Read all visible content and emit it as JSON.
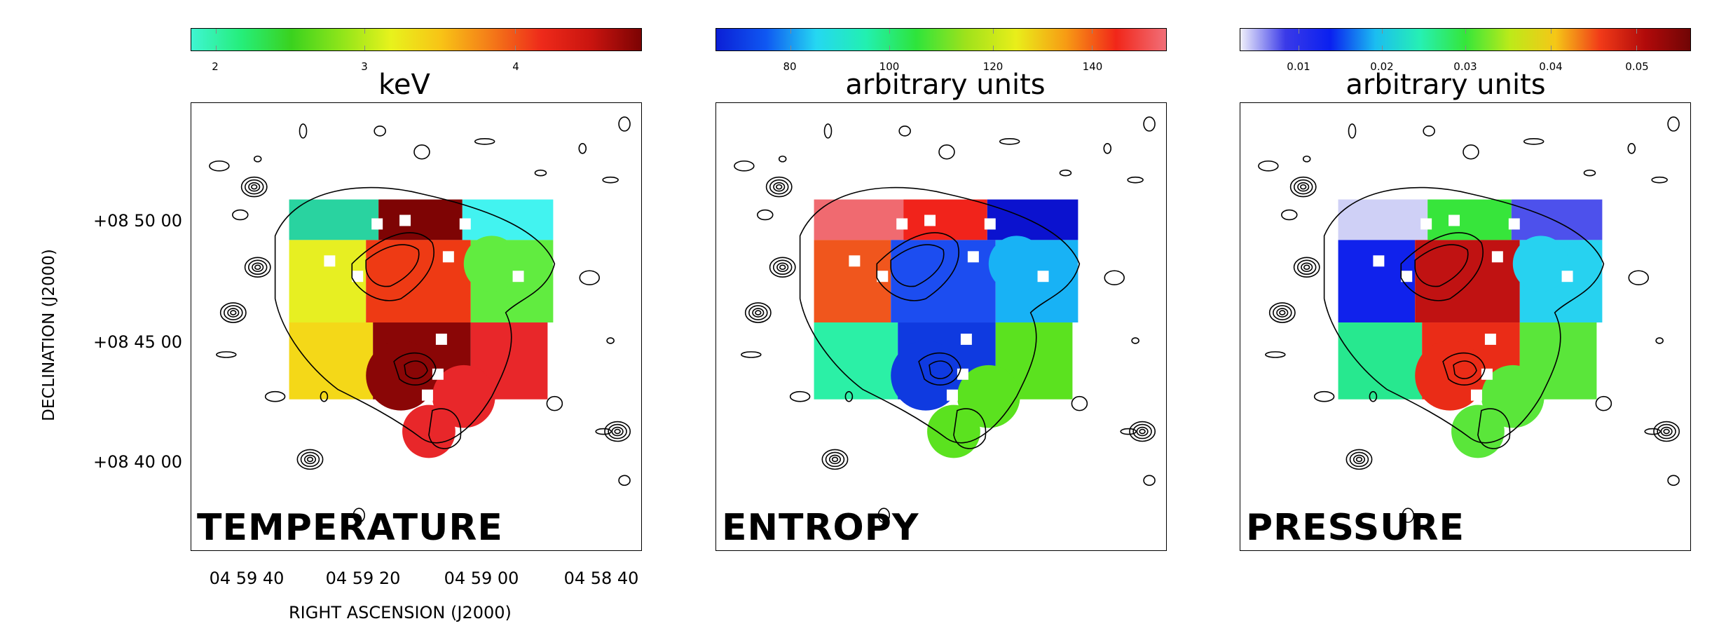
{
  "panels": [
    {
      "title": "TEMPERATURE",
      "unit": "keV",
      "ticks": [
        "2",
        "3",
        "4"
      ],
      "tick_fracs": [
        0.055,
        0.385,
        0.72
      ],
      "gradient": [
        "#3ff5d2",
        "#25ee7a",
        "#3ad21e",
        "#8fe51a",
        "#e8f21c",
        "#f8c316",
        "#f47a18",
        "#ee2a1a",
        "#c9140f",
        "#7c0303"
      ],
      "cells": [
        {
          "c": "#29d3a0"
        },
        {
          "c": "#7e0404"
        },
        {
          "c": "#42f3f0"
        },
        {
          "c": "#e7ef22"
        },
        {
          "c": "#ee3a14"
        },
        {
          "c": "#61ec40"
        },
        {
          "c": "#f4d818"
        },
        {
          "c": "#8a0606"
        },
        {
          "c": "#e8272a"
        }
      ]
    },
    {
      "title": "ENTROPY",
      "unit": "arbitrary units",
      "ticks": [
        "80",
        "100",
        "120",
        "140"
      ],
      "tick_fracs": [
        0.165,
        0.385,
        0.615,
        0.835
      ],
      "gradient": [
        "#0b1fd6",
        "#0f58f2",
        "#25d7f2",
        "#22f0b0",
        "#2ee43b",
        "#9fe21b",
        "#e9ee1a",
        "#f79b14",
        "#f12619",
        "#f16f78"
      ],
      "cells": [
        {
          "c": "#f06a70"
        },
        {
          "c": "#f1231b"
        },
        {
          "c": "#0b12cf"
        },
        {
          "c": "#f0561d"
        },
        {
          "c": "#1c4df0"
        },
        {
          "c": "#18b2f5"
        },
        {
          "c": "#2bf0a6"
        },
        {
          "c": "#0f3ae0"
        },
        {
          "c": "#5be21f"
        }
      ]
    },
    {
      "title": "PRESSURE",
      "unit": "arbitrary units",
      "ticks": [
        "0.01",
        "0.02",
        "0.03",
        "0.04",
        "0.05"
      ],
      "tick_fracs": [
        0.13,
        0.315,
        0.5,
        0.69,
        0.88
      ],
      "gradient": [
        "#f0f0fb",
        "#3a3ae8",
        "#0a20f0",
        "#1bbdf1",
        "#26f0b3",
        "#35e63a",
        "#bdea19",
        "#f5c717",
        "#f13a18",
        "#b10a0a",
        "#700505"
      ],
      "cells": [
        {
          "c": "#cfd0f6"
        },
        {
          "c": "#37e53b"
        },
        {
          "c": "#4d51ec"
        },
        {
          "c": "#1022ec"
        },
        {
          "c": "#c01212"
        },
        {
          "c": "#27d2f0"
        },
        {
          "c": "#27e88f"
        },
        {
          "c": "#ea2c17"
        },
        {
          "c": "#5ae63a"
        }
      ]
    }
  ],
  "axes": {
    "ylabel": "DECLINATION (J2000)",
    "xlabel": "RIGHT ASCENSION (J2000)",
    "yticks": [
      "+08 50 00",
      "+08 45 00",
      "+08 40 00"
    ],
    "xticks": [
      "04 59 40",
      "04 59 20",
      "04 59 00",
      "04 58 40"
    ]
  }
}
